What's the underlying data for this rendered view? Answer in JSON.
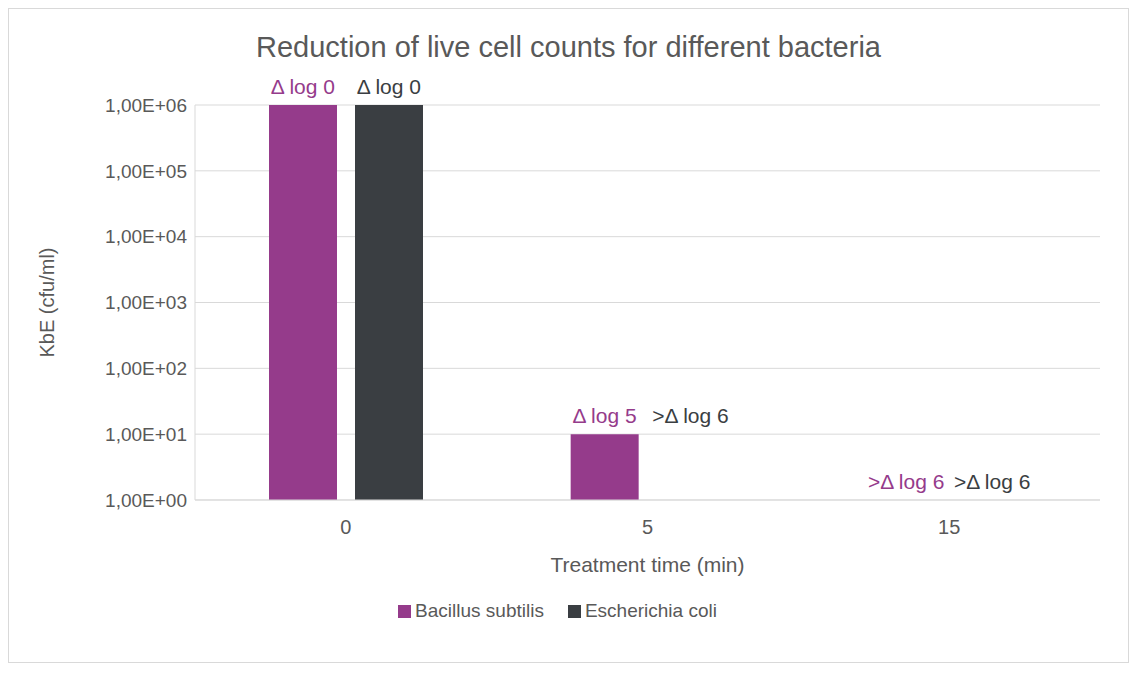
{
  "chart_data": {
    "type": "bar",
    "title": "Reduction of live cell counts for different bacteria",
    "x_label": "Treatment time (min)",
    "y_label": "KbE (cfu/ml)",
    "categories": [
      "0",
      "5",
      "15"
    ],
    "series": [
      {
        "name": "Bacillus subtilis",
        "color": "#953b8b",
        "values": [
          1000000,
          10,
          null
        ],
        "annotations": [
          "Δ log 0",
          "Δ log 5",
          ">Δ log 6"
        ]
      },
      {
        "name": "Escherichia coli",
        "color": "#3a3e42",
        "values": [
          1000000,
          null,
          null
        ],
        "annotations": [
          "Δ log 0",
          ">Δ log 6",
          ">Δ log 6"
        ]
      }
    ],
    "log": "y",
    "ylim": [
      1,
      1000000
    ],
    "yticks": [
      {
        "value": 1,
        "label": "1,00E+00"
      },
      {
        "value": 10,
        "label": "1,00E+01"
      },
      {
        "value": 100,
        "label": "1,00E+02"
      },
      {
        "value": 1000,
        "label": "1,00E+03"
      },
      {
        "value": 10000,
        "label": "1,00E+04"
      },
      {
        "value": 100000,
        "label": "1,00E+05"
      },
      {
        "value": 1000000,
        "label": "1,00E+06"
      }
    ],
    "grid": true,
    "legend": "bottom"
  }
}
